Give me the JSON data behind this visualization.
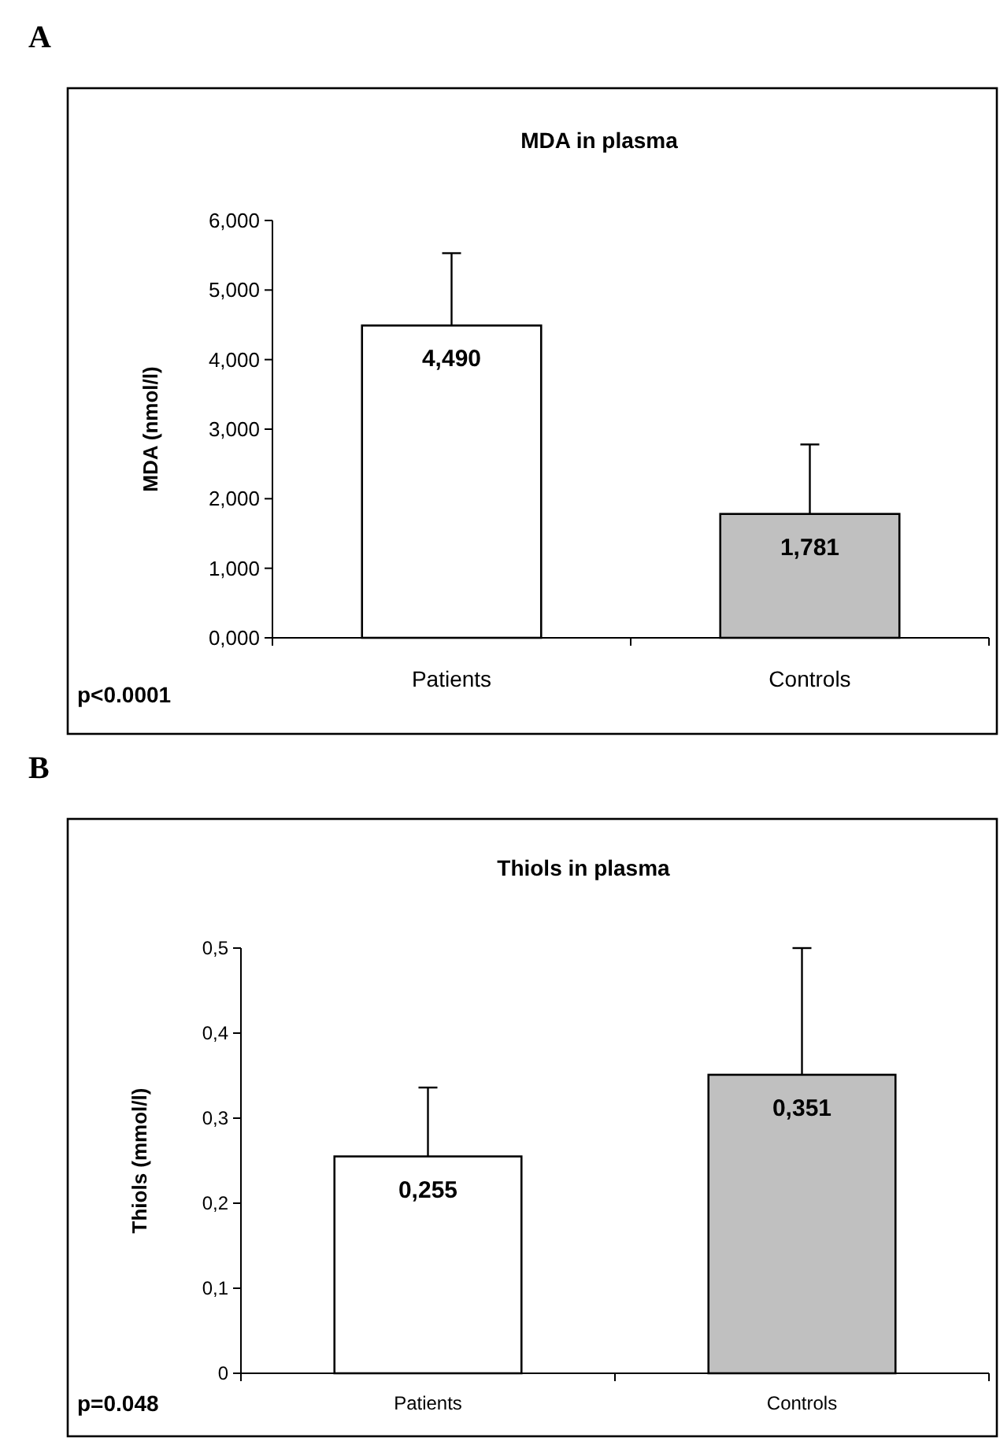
{
  "chart_data": [
    {
      "type": "bar",
      "title": "MDA in plasma",
      "ylabel": "MDA (nmol/l)",
      "categories": [
        "Patients",
        "Controls"
      ],
      "colors": [
        "#ffffff",
        "#c0c0c0"
      ],
      "values": [
        4.49,
        1.781
      ],
      "errors": [
        [
          4.49,
          5.53
        ],
        [
          1.781,
          2.78
        ]
      ],
      "value_labels": [
        "4,490",
        "1,781"
      ],
      "ylim": [
        0,
        6
      ],
      "yticks": [
        {
          "value": 0,
          "label": "0,000"
        },
        {
          "value": 1,
          "label": "1,000"
        },
        {
          "value": 2,
          "label": "2,000"
        },
        {
          "value": 3,
          "label": "3,000"
        },
        {
          "value": 4,
          "label": "4,000"
        },
        {
          "value": 5,
          "label": "5,000"
        },
        {
          "value": 6,
          "label": "6,000"
        }
      ],
      "grid": false,
      "annotations": [
        "A",
        "p<0.0001"
      ]
    },
    {
      "type": "bar",
      "title": "Thiols in plasma",
      "ylabel": "Thiols (mmol/l)",
      "categories": [
        "Patients",
        "Controls"
      ],
      "colors": [
        "#ffffff",
        "#c0c0c0"
      ],
      "values": [
        0.255,
        0.351
      ],
      "errors": [
        [
          0.255,
          0.336
        ],
        [
          0.351,
          0.5
        ]
      ],
      "value_labels": [
        "0,255",
        "0,351"
      ],
      "ylim": [
        0,
        0.5
      ],
      "yticks": [
        0,
        {
          "value": 0.1,
          "label": "0,1"
        },
        {
          "value": 0.2,
          "label": "0,2"
        },
        {
          "value": 0.3,
          "label": "0,3"
        },
        {
          "value": 0.4,
          "label": "0,4"
        },
        {
          "value": 0.5,
          "label": "0,5"
        }
      ],
      "grid": false,
      "annotations": [
        "B",
        "p=0.048"
      ]
    }
  ]
}
